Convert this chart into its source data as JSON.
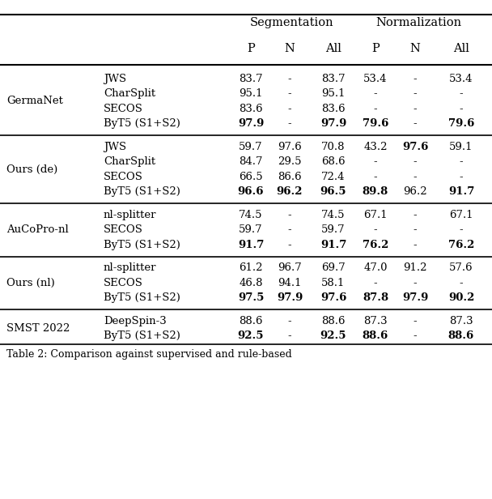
{
  "sections": [
    {
      "group": "GermaNet",
      "rows": [
        {
          "method": "JWS",
          "seg_p": "83.7",
          "seg_n": "-",
          "seg_all": "83.7",
          "nor_p": "53.4",
          "nor_n": "-",
          "nor_all": "53.4",
          "bold": [
            false,
            false,
            false,
            false,
            false,
            false
          ]
        },
        {
          "method": "CharSplit",
          "seg_p": "95.1",
          "seg_n": "-",
          "seg_all": "95.1",
          "nor_p": "-",
          "nor_n": "-",
          "nor_all": "-",
          "bold": [
            false,
            false,
            false,
            false,
            false,
            false
          ]
        },
        {
          "method": "SECOS",
          "seg_p": "83.6",
          "seg_n": "-",
          "seg_all": "83.6",
          "nor_p": "-",
          "nor_n": "-",
          "nor_all": "-",
          "bold": [
            false,
            false,
            false,
            false,
            false,
            false
          ]
        },
        {
          "method": "ByT5 (S1+S2)",
          "seg_p": "97.9",
          "seg_n": "-",
          "seg_all": "97.9",
          "nor_p": "79.6",
          "nor_n": "-",
          "nor_all": "79.6",
          "bold": [
            true,
            false,
            true,
            true,
            false,
            true
          ]
        }
      ]
    },
    {
      "group": "Ours (de)",
      "rows": [
        {
          "method": "JWS",
          "seg_p": "59.7",
          "seg_n": "97.6",
          "seg_all": "70.8",
          "nor_p": "43.2",
          "nor_n": "97.6",
          "nor_all": "59.1",
          "bold": [
            false,
            false,
            false,
            false,
            true,
            false
          ]
        },
        {
          "method": "CharSplit",
          "seg_p": "84.7",
          "seg_n": "29.5",
          "seg_all": "68.6",
          "nor_p": "-",
          "nor_n": "-",
          "nor_all": "-",
          "bold": [
            false,
            false,
            false,
            false,
            false,
            false
          ]
        },
        {
          "method": "SECOS",
          "seg_p": "66.5",
          "seg_n": "86.6",
          "seg_all": "72.4",
          "nor_p": "-",
          "nor_n": "-",
          "nor_all": "-",
          "bold": [
            false,
            false,
            false,
            false,
            false,
            false
          ]
        },
        {
          "method": "ByT5 (S1+S2)",
          "seg_p": "96.6",
          "seg_n": "96.2",
          "seg_all": "96.5",
          "nor_p": "89.8",
          "nor_n": "96.2",
          "nor_all": "91.7",
          "bold": [
            true,
            true,
            true,
            true,
            false,
            true
          ]
        }
      ]
    },
    {
      "group": "AuCoPro-nl",
      "rows": [
        {
          "method": "nl-splitter",
          "seg_p": "74.5",
          "seg_n": "-",
          "seg_all": "74.5",
          "nor_p": "67.1",
          "nor_n": "-",
          "nor_all": "67.1",
          "bold": [
            false,
            false,
            false,
            false,
            false,
            false
          ]
        },
        {
          "method": "SECOS",
          "seg_p": "59.7",
          "seg_n": "-",
          "seg_all": "59.7",
          "nor_p": "-",
          "nor_n": "-",
          "nor_all": "-",
          "bold": [
            false,
            false,
            false,
            false,
            false,
            false
          ]
        },
        {
          "method": "ByT5 (S1+S2)",
          "seg_p": "91.7",
          "seg_n": "-",
          "seg_all": "91.7",
          "nor_p": "76.2",
          "nor_n": "-",
          "nor_all": "76.2",
          "bold": [
            true,
            false,
            true,
            true,
            false,
            true
          ]
        }
      ]
    },
    {
      "group": "Ours (nl)",
      "rows": [
        {
          "method": "nl-splitter",
          "seg_p": "61.2",
          "seg_n": "96.7",
          "seg_all": "69.7",
          "nor_p": "47.0",
          "nor_n": "91.2",
          "nor_all": "57.6",
          "bold": [
            false,
            false,
            false,
            false,
            false,
            false
          ]
        },
        {
          "method": "SECOS",
          "seg_p": "46.8",
          "seg_n": "94.1",
          "seg_all": "58.1",
          "nor_p": "-",
          "nor_n": "-",
          "nor_all": "-",
          "bold": [
            false,
            false,
            false,
            false,
            false,
            false
          ]
        },
        {
          "method": "ByT5 (S1+S2)",
          "seg_p": "97.5",
          "seg_n": "97.9",
          "seg_all": "97.6",
          "nor_p": "87.8",
          "nor_n": "97.9",
          "nor_all": "90.2",
          "bold": [
            true,
            true,
            true,
            true,
            true,
            true
          ]
        }
      ]
    },
    {
      "group": "SMST 2022",
      "rows": [
        {
          "method": "DeepSpin-3",
          "seg_p": "88.6",
          "seg_n": "-",
          "seg_all": "88.6",
          "nor_p": "87.3",
          "nor_n": "-",
          "nor_all": "87.3",
          "bold": [
            false,
            false,
            false,
            false,
            false,
            false
          ]
        },
        {
          "method": "ByT5 (S1+S2)",
          "seg_p": "92.5",
          "seg_n": "-",
          "seg_all": "92.5",
          "nor_p": "88.6",
          "nor_n": "-",
          "nor_all": "88.6",
          "bold": [
            true,
            false,
            true,
            true,
            false,
            true
          ]
        }
      ]
    }
  ],
  "bg_color": "#ffffff",
  "text_color": "#000000",
  "caption": "Table 2: Comparison against supervised and rule-based"
}
